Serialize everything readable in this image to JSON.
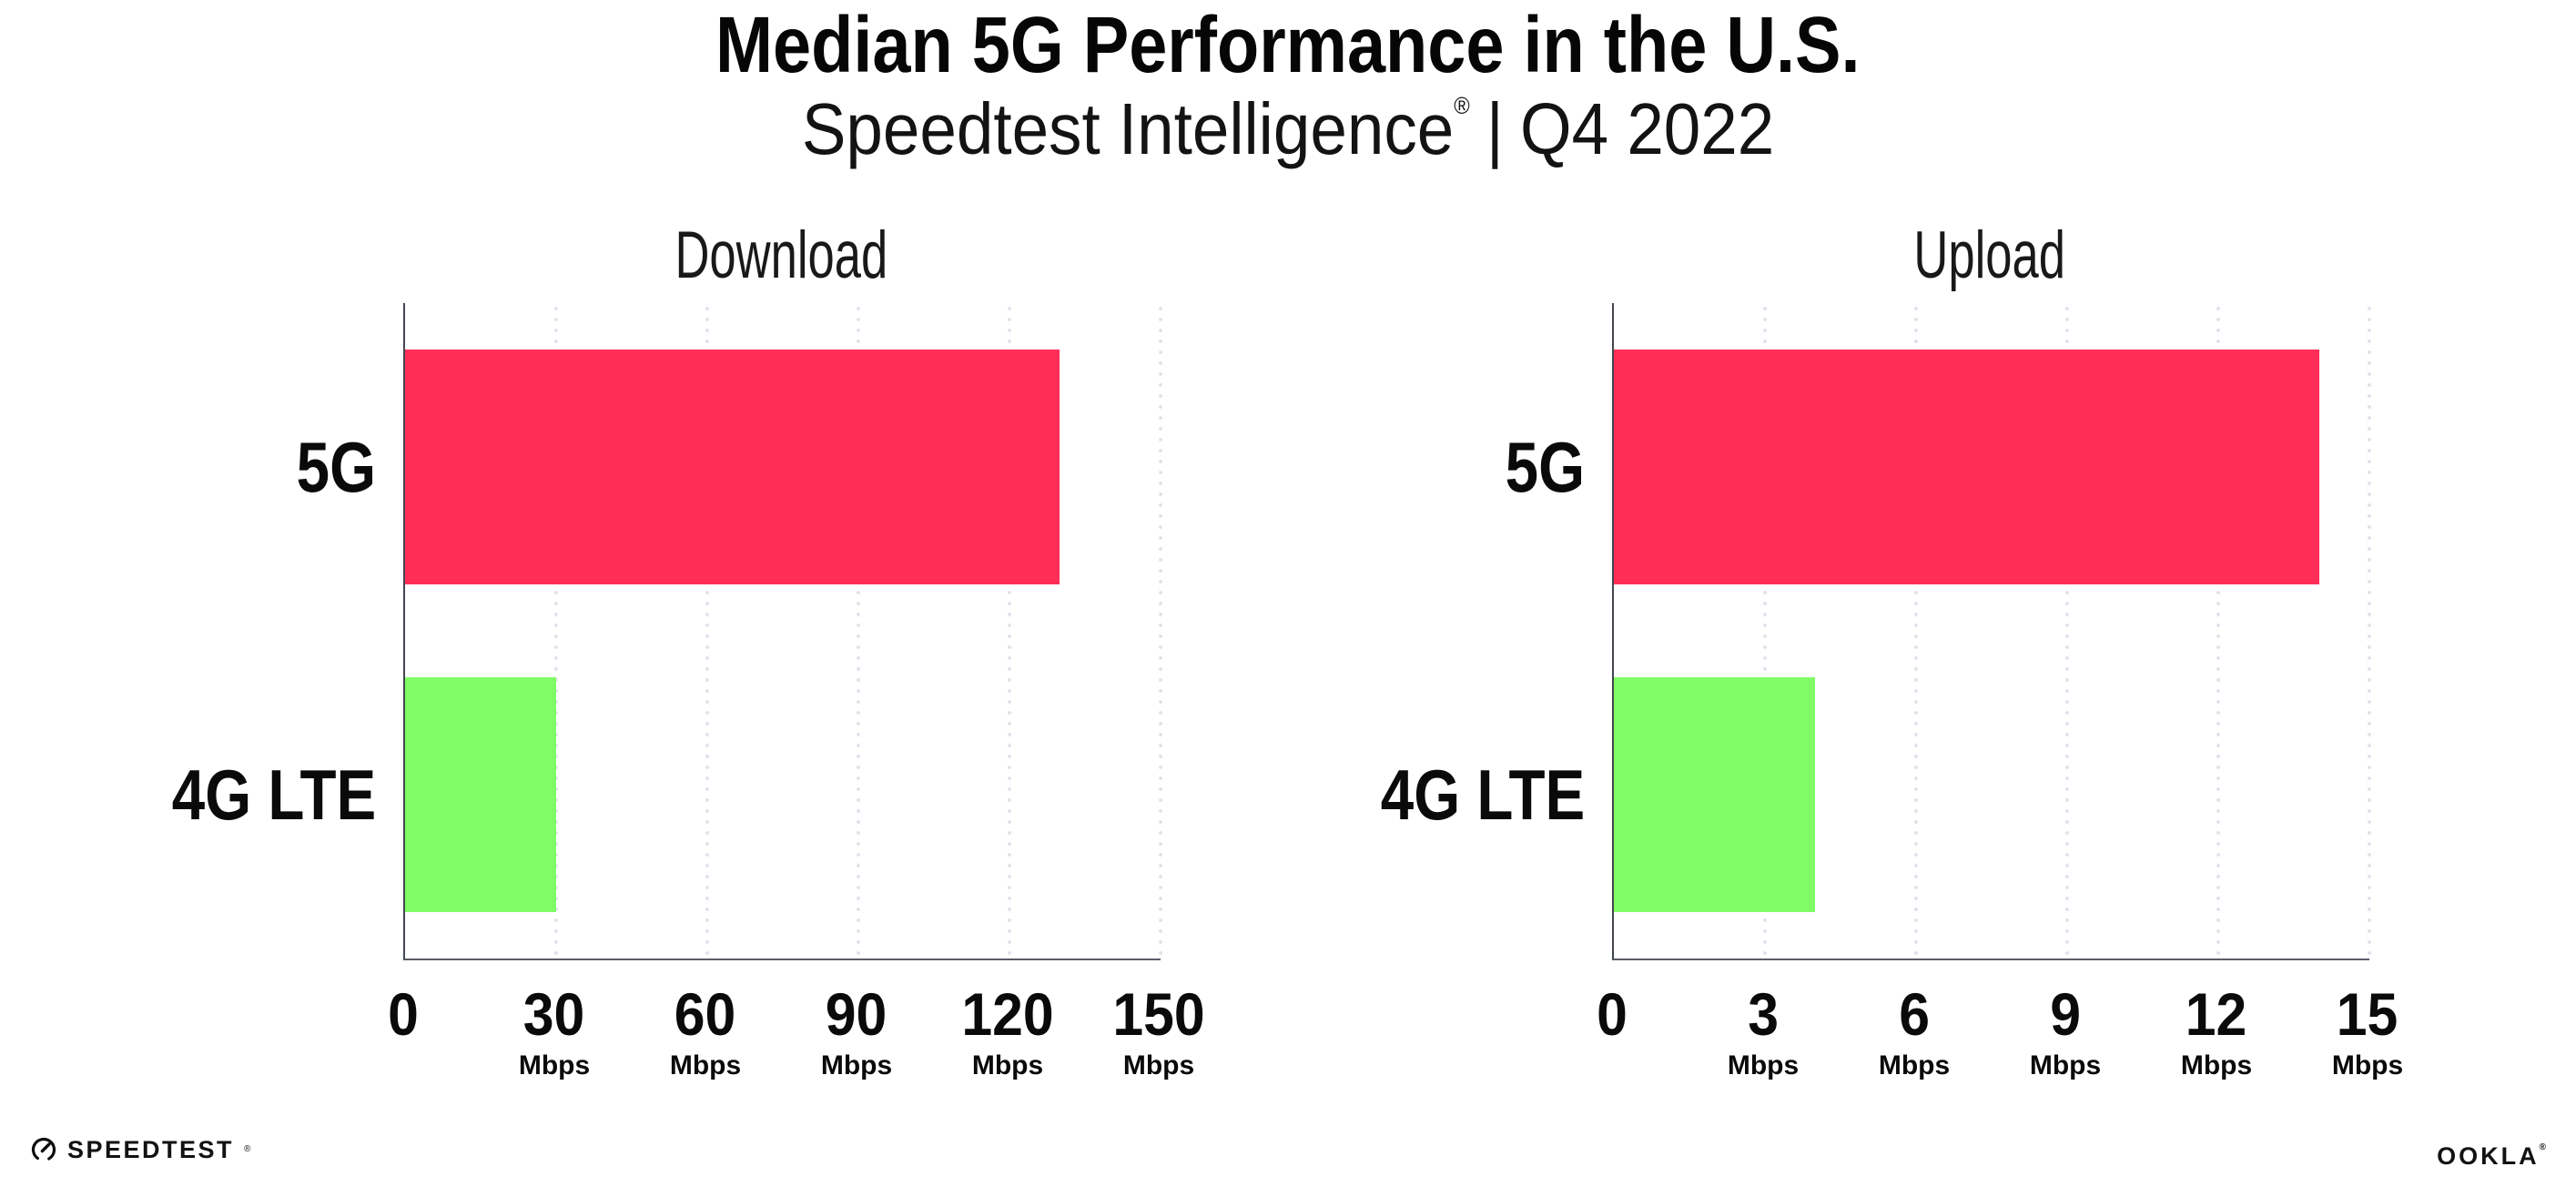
{
  "header": {
    "title": "Median 5G Performance in the U.S.",
    "subtitle_brand": "Speedtest Intelligence",
    "subtitle_reg": "®",
    "subtitle_divider": "|",
    "subtitle_period": "Q4 2022"
  },
  "colors": {
    "bar_5g": "#FF2D57",
    "bar_4g_lte": "#80FC66",
    "axis_line": "#42474F",
    "gridline_dots": "#E1E1EC",
    "text": "#0A0A0C",
    "background": "#FFFFFF"
  },
  "chart_data": [
    {
      "type": "bar",
      "orientation": "horizontal",
      "title": "Download",
      "categories": [
        "5G",
        "4G LTE"
      ],
      "values": [
        130,
        30
      ],
      "unit": "Mbps",
      "xlim": [
        0,
        150
      ],
      "xticks": [
        0,
        30,
        60,
        90,
        120,
        150
      ],
      "tick_unit_label": "Mbps",
      "grid": "dotted-vertical",
      "legend": "none",
      "bar_colors": [
        "#FF2D57",
        "#80FC66"
      ]
    },
    {
      "type": "bar",
      "orientation": "horizontal",
      "title": "Upload",
      "categories": [
        "5G",
        "4G LTE"
      ],
      "values": [
        14,
        4
      ],
      "unit": "Mbps",
      "xlim": [
        0,
        15
      ],
      "xticks": [
        0,
        3,
        6,
        9,
        12,
        15
      ],
      "tick_unit_label": "Mbps",
      "grid": "dotted-vertical",
      "legend": "none",
      "bar_colors": [
        "#FF2D57",
        "#80FC66"
      ]
    }
  ],
  "footer": {
    "speedtest_label": "SPEEDTEST",
    "speedtest_reg": "®",
    "speedtest_gauge_icon": "speedtest-gauge",
    "ookla_label": "OOKLA",
    "ookla_reg": "®"
  }
}
